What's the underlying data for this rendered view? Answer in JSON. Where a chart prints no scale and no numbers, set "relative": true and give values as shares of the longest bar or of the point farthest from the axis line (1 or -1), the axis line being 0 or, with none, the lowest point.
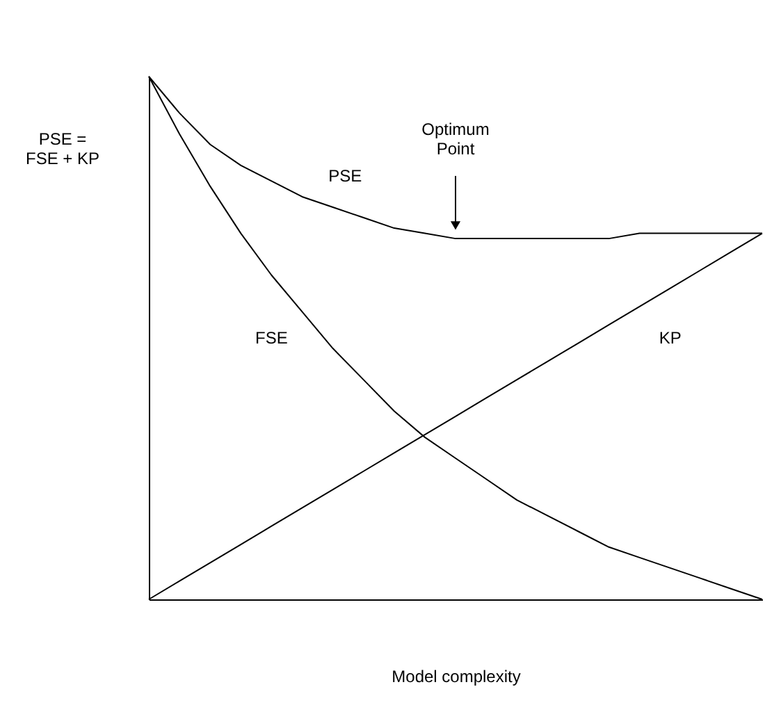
{
  "chart_data": {
    "type": "line",
    "relative": true,
    "xlabel": "Model complexity",
    "ylabel": "PSE =\nFSE + KP",
    "categories": [
      null,
      null,
      null,
      null,
      null,
      null,
      null,
      null,
      null,
      null,
      null,
      null,
      null,
      null,
      null,
      null,
      null,
      null,
      null,
      null,
      null
    ],
    "series": [
      {
        "name": "PSE",
        "color": "#000000",
        "values": [
          1,
          0.93,
          0.87,
          0.83,
          0.8,
          0.77,
          0.75,
          0.73,
          0.71,
          0.7,
          0.69,
          0.69,
          0.69,
          0.69,
          0.69,
          0.69,
          0.7,
          0.7,
          0.7,
          0.7,
          0.7
        ]
      },
      {
        "name": "FSE",
        "color": "#000000",
        "values": [
          1,
          0.89,
          0.79,
          0.7,
          0.62,
          0.55,
          0.48,
          0.42,
          0.36,
          0.31,
          0.27,
          0.23,
          0.19,
          0.16,
          0.13,
          0.1,
          0.08,
          0.06,
          0.04,
          0.02,
          0
        ]
      },
      {
        "name": "KP",
        "color": "#000000",
        "values": [
          0,
          0.035,
          0.07,
          0.105,
          0.14,
          0.175,
          0.21,
          0.245,
          0.28,
          0.315,
          0.35,
          0.385,
          0.42,
          0.455,
          0.49,
          0.525,
          0.56,
          0.595,
          0.63,
          0.665,
          0.7
        ]
      }
    ],
    "annotations": [
      "Optimum\nPoint"
    ],
    "grid": false,
    "tick_labels": false,
    "marker": "none",
    "line_style": "solid"
  }
}
